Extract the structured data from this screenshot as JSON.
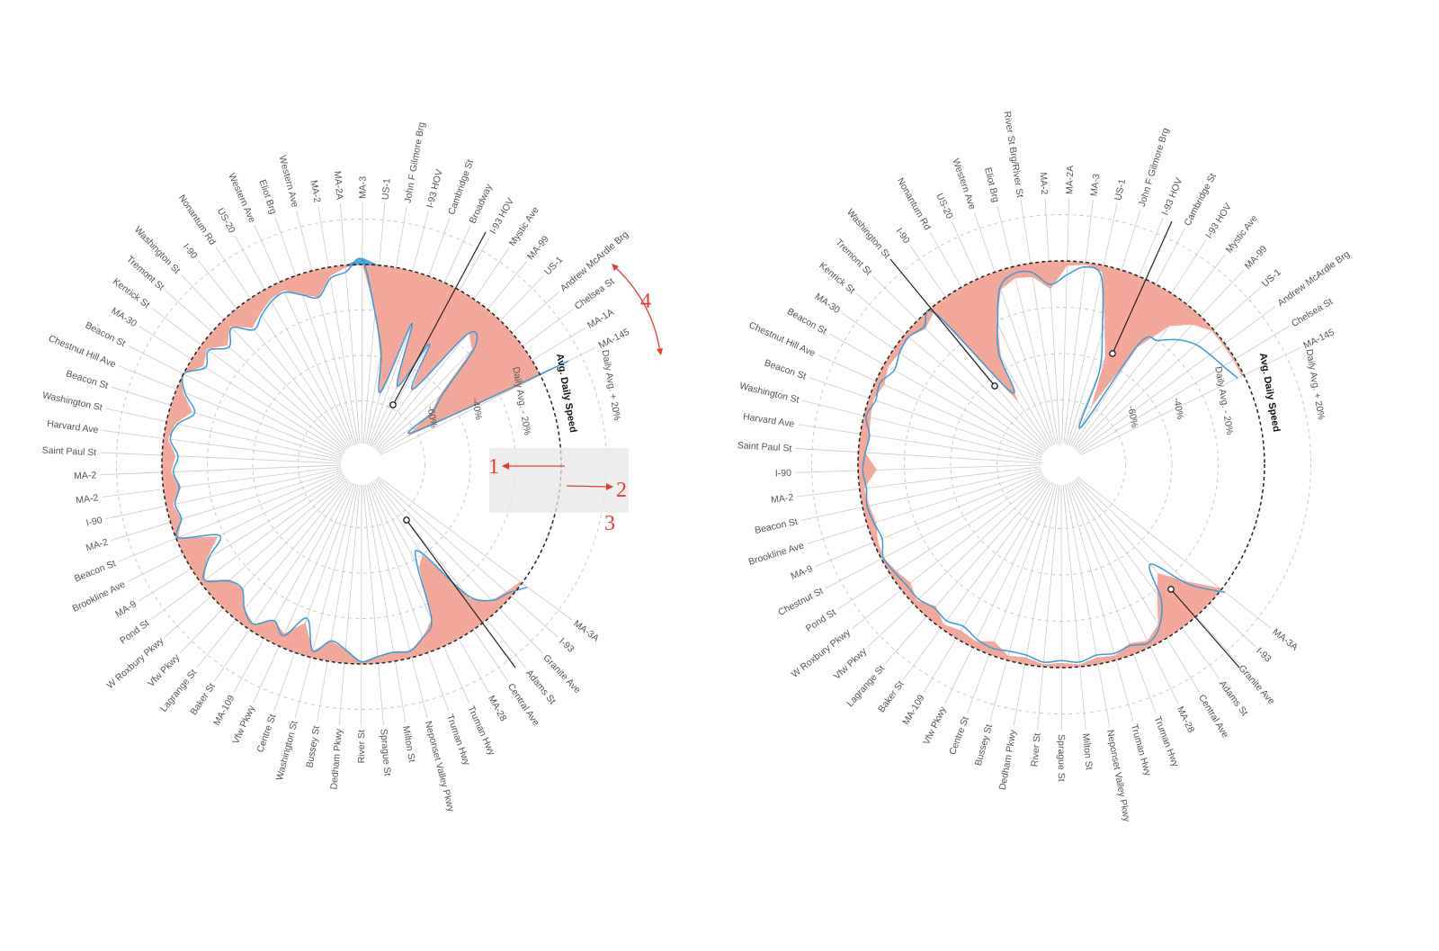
{
  "charts": [
    {
      "streets": [
        "MA-3A",
        "I-93",
        "Granite Ave",
        "Adams St",
        "Central Ave",
        "MA-28",
        "Truman Hwy",
        "Truman Hwy",
        "Neponset Valley Pkwy",
        "Milton St",
        "Sprague St",
        "River St",
        "Dedham Pkwy",
        "Bussey St",
        "Washington St",
        "Centre St",
        "Vfw Pkwy",
        "MA-109",
        "Baker St",
        "Lagrange St",
        "Vfw Pkwy",
        "W Roxbury Pkwy",
        "Pond St",
        "MA-9",
        "Brookline Ave",
        "Beacon St",
        "MA-2",
        "I-90",
        "MA-2",
        "MA-2",
        "Saint Paul St",
        "Harvard Ave",
        "Washington St",
        "Beacon St",
        "Chestnut Hill Ave",
        "Beacon St",
        "MA-30",
        "Kenrick St",
        "Tremont St",
        "Washington St",
        "I-90",
        "Nonantum Rd",
        "US-20",
        "Western Ave",
        "Eliot Brg",
        "Western Ave",
        "MA-2",
        "MA-2A",
        "MA-3",
        "US-1",
        "John F Gilmore Brg",
        "I-93 HOV",
        "Cambridge St",
        "Broadway",
        "I-93 HOV",
        "Mystic Ave",
        "MA-99",
        "US-1",
        "Andrew McArdle Brg",
        "Chelsea St",
        "MA-1A",
        "MA-145"
      ],
      "ring_labels": {
        "minus60": "-60%",
        "minus40": "-40%",
        "minus20": "Daily Avg. - 20%",
        "avg": "Avg. Daily Speed",
        "plus20": "Daily Avg. + 20%"
      },
      "annotations": [
        "1",
        "2",
        "3",
        "4"
      ]
    },
    {
      "streets": [
        "MA-3A",
        "I-93",
        "Granite Ave",
        "Adams St",
        "Central Ave",
        "MA-28",
        "Truman Hwy",
        "Truman Hwy",
        "Neponset Valley Pkwy",
        "Milton St",
        "Sprague St",
        "River St",
        "Dedham Pkwy",
        "Bussey St",
        "Centre St",
        "Vfw Pkwy",
        "MA-109",
        "Baker St",
        "Lagrange St",
        "Vfw Pkwy",
        "W Roxbury Pkwy",
        "Pond St",
        "Chestnut St",
        "MA-9",
        "Brookline Ave",
        "Beacon St",
        "MA-2",
        "I-90",
        "Saint Paul St",
        "Harvard Ave",
        "Washington St",
        "Beacon St",
        "Chestnut Hill Ave",
        "Beacon St",
        "MA-30",
        "Kenrick St",
        "Tremont St",
        "Washington St",
        "I-90",
        "Nonantum Rd",
        "US-20",
        "Western Ave",
        "Eliot Brg",
        "River St Brg/River St",
        "MA-2",
        "MA-2A",
        "MA-3",
        "US-1",
        "John F Gilmore Brg",
        "I-93 HOV",
        "Cambridge St",
        "I-93 HOV",
        "Mystic Ave",
        "MA-99",
        "US-1",
        "Andrew McArdle Brg",
        "Chelsea St",
        "MA-145"
      ],
      "ring_labels": {
        "minus60": "-60%",
        "minus40": "-40%",
        "minus20": "Daily Avg. - 20%",
        "avg": "Avg. Daily Speed",
        "plus20": "Daily Avg. + 20%"
      }
    }
  ],
  "chart_data": [
    {
      "type": "radial-area",
      "encoding": "speed relative to daily average",
      "categories": [
        "MA-3A",
        "I-93",
        "Granite Ave",
        "Adams St",
        "Central Ave",
        "MA-28",
        "Truman Hwy",
        "Truman Hwy",
        "Neponset Valley Pkwy",
        "Milton St",
        "Sprague St",
        "River St",
        "Dedham Pkwy",
        "Bussey St",
        "Washington St",
        "Centre St",
        "Vfw Pkwy",
        "MA-109",
        "Baker St",
        "Lagrange St",
        "Vfw Pkwy",
        "W Roxbury Pkwy",
        "Pond St",
        "MA-9",
        "Brookline Ave",
        "Beacon St",
        "MA-2",
        "I-90",
        "MA-2",
        "MA-2",
        "Saint Paul St",
        "Harvard Ave",
        "Washington St",
        "Beacon St",
        "Chestnut Hill Ave",
        "Beacon St",
        "MA-30",
        "Kenrick St",
        "Tremont St",
        "Washington St",
        "I-90",
        "Nonantum Rd",
        "US-20",
        "Western Ave",
        "Eliot Brg",
        "Western Ave",
        "MA-2",
        "MA-2A",
        "MA-3",
        "US-1",
        "John F Gilmore Brg",
        "I-93 HOV",
        "Cambridge St",
        "Broadway",
        "I-93 HOV",
        "Mystic Ave",
        "MA-99",
        "US-1",
        "Andrew McArdle Brg",
        "Chelsea St",
        "MA-1A",
        "MA-145"
      ],
      "series": [
        {
          "values": [
            -1,
            -3,
            -5,
            -12,
            -40,
            -36,
            -13,
            -7,
            -3,
            -4,
            -3,
            -1,
            -6,
            -9,
            -3,
            -14,
            -6,
            -9,
            -3,
            -6,
            -12,
            -11,
            -2,
            -8,
            -17,
            -1,
            -5,
            -3,
            -8,
            -4,
            -6,
            -2,
            -4,
            -10,
            -3,
            0,
            -6,
            -3,
            -9,
            -4,
            -11,
            -8,
            -5,
            -4,
            -9,
            -12,
            -4,
            -1,
            3,
            -20,
            -40,
            -57,
            -20,
            -52,
            -25,
            -50,
            -13,
            -18,
            -43,
            -50,
            -65,
            -10
          ]
        },
        {
          "values": [
            3,
            -2,
            -5,
            -14,
            -41,
            -38,
            -13,
            -7,
            -3,
            -4,
            -3,
            -1,
            -6,
            -9,
            -3,
            -16,
            -5,
            -9,
            -3,
            -6,
            -12,
            -10,
            -2,
            -9,
            -18,
            -1,
            -5,
            -4,
            -7,
            -5,
            -7,
            -3,
            -5,
            -11,
            -4,
            0,
            -7,
            -4,
            -10,
            -5,
            -12,
            -9,
            -6,
            -5,
            -9,
            -12,
            -5,
            -3,
            2,
            -21,
            -38,
            -55,
            -22,
            -50,
            -27,
            -48,
            -14,
            -16,
            -40,
            -49,
            -60,
            14
          ]
        }
      ],
      "rlim": [
        -80,
        20
      ]
    },
    {
      "type": "radial-area",
      "encoding": "speed relative to daily average",
      "categories": [
        "MA-3A",
        "I-93",
        "Granite Ave",
        "Adams St",
        "Central Ave",
        "MA-28",
        "Truman Hwy",
        "Truman Hwy",
        "Neponset Valley Pkwy",
        "Milton St",
        "Sprague St",
        "River St",
        "Dedham Pkwy",
        "Bussey St",
        "Centre St",
        "Vfw Pkwy",
        "MA-109",
        "Baker St",
        "Lagrange St",
        "Vfw Pkwy",
        "W Roxbury Pkwy",
        "Pond St",
        "Chestnut St",
        "MA-9",
        "Brookline Ave",
        "Beacon St",
        "MA-2",
        "I-90",
        "Saint Paul St",
        "Harvard Ave",
        "Washington St",
        "Beacon St",
        "Chestnut Hill Ave",
        "Beacon St",
        "MA-30",
        "Kenrick St",
        "Tremont St",
        "Washington St",
        "I-90",
        "Nonantum Rd",
        "US-20",
        "Western Ave",
        "Eliot Brg",
        "River St Brg/River St",
        "MA-2",
        "MA-2A",
        "MA-3",
        "US-1",
        "John F Gilmore Brg",
        "I-93 HOV",
        "Cambridge St",
        "I-93 HOV",
        "Mystic Ave",
        "MA-99",
        "US-1",
        "Andrew McArdle Brg",
        "Chelsea St",
        "MA-145"
      ],
      "series": [
        {
          "values": [
            -1,
            -14,
            -25,
            -18,
            -7,
            -3,
            -5,
            -2,
            -3,
            -1,
            -2,
            -1,
            -3,
            -2,
            -6,
            -3,
            -4,
            -2,
            -6,
            -2,
            -5,
            -3,
            -1,
            -2,
            -4,
            -3,
            -2,
            -8,
            -3,
            -4,
            -3,
            -2,
            -4,
            -2,
            -3,
            -2,
            -5,
            -2,
            -55,
            -35,
            -20,
            -8,
            -5,
            -6,
            -12,
            -2,
            -1,
            -3,
            -25,
            -38,
            -60,
            -28,
            -12,
            -5,
            -1,
            -1,
            -1,
            -1
          ]
        },
        {
          "values": [
            2,
            -12,
            -30,
            -15,
            -6,
            -2,
            -4,
            -3,
            -4,
            -2,
            -3,
            -2,
            -4,
            -4,
            -3,
            -4,
            -6,
            -4,
            -5,
            -3,
            -3,
            -2,
            -1,
            -4,
            -3,
            -2,
            -3,
            -2,
            -3,
            -4,
            -1,
            -3,
            -2,
            -5,
            -3,
            -2,
            -4,
            -3,
            -50,
            -33,
            -21,
            -7,
            -3,
            -4,
            -10,
            -6,
            -2,
            -5,
            -28,
            -45,
            -70,
            -26,
            -20,
            -14,
            -10,
            -8,
            -6,
            -3
          ]
        }
      ],
      "rlim": [
        -80,
        20
      ]
    }
  ],
  "colors": {
    "decrease_fill": "#f3a89a",
    "increase_fill": "#4ba9e0",
    "line": "#3b9bd6",
    "annotation": "#e0402f"
  }
}
